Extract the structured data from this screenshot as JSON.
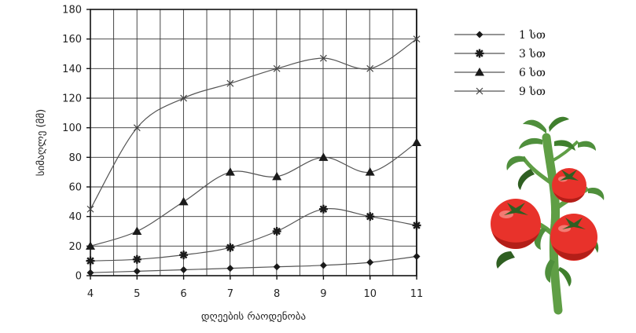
{
  "chart_data": {
    "type": "line",
    "xlabel": "დღეების რაოდენობა",
    "ylabel": "სიმაღლე (მმ)",
    "x": [
      4,
      5,
      6,
      7,
      8,
      9,
      10,
      11
    ],
    "x_ticks": [
      "4",
      "5",
      "6",
      "7",
      "8",
      "9",
      "10",
      "11"
    ],
    "y_ticks": [
      "0",
      "20",
      "40",
      "60",
      "80",
      "100",
      "120",
      "140",
      "160",
      "180"
    ],
    "xlim": [
      4,
      11
    ],
    "ylim": [
      0,
      180
    ],
    "grid": true,
    "legend_position": "top-right",
    "series": [
      {
        "name": "1 სთ",
        "marker": "diamond",
        "values": [
          2,
          3,
          4,
          5,
          6,
          7,
          9,
          13
        ]
      },
      {
        "name": "3 სთ",
        "marker": "asterisk",
        "values": [
          10,
          11,
          14,
          19,
          30,
          45,
          40,
          34
        ]
      },
      {
        "name": "6 სთ",
        "marker": "triangle",
        "values": [
          20,
          30,
          50,
          70,
          67,
          80,
          70,
          90
        ]
      },
      {
        "name": "9 სთ",
        "marker": "cross",
        "values": [
          45,
          100,
          120,
          130,
          140,
          147,
          140,
          160
        ]
      }
    ],
    "colors": {
      "line": "#555555",
      "marker": "#1a1a1a",
      "grid": "#333333",
      "axis": "#111111"
    }
  },
  "illustration": {
    "icon": "tomato-plant-icon",
    "colors": {
      "stem": "#5f9e45",
      "leaf": "#4f8f3c",
      "leaf_dark": "#2f5f22",
      "fruit": "#e8322b",
      "fruit_shadow": "#b31e18"
    }
  }
}
